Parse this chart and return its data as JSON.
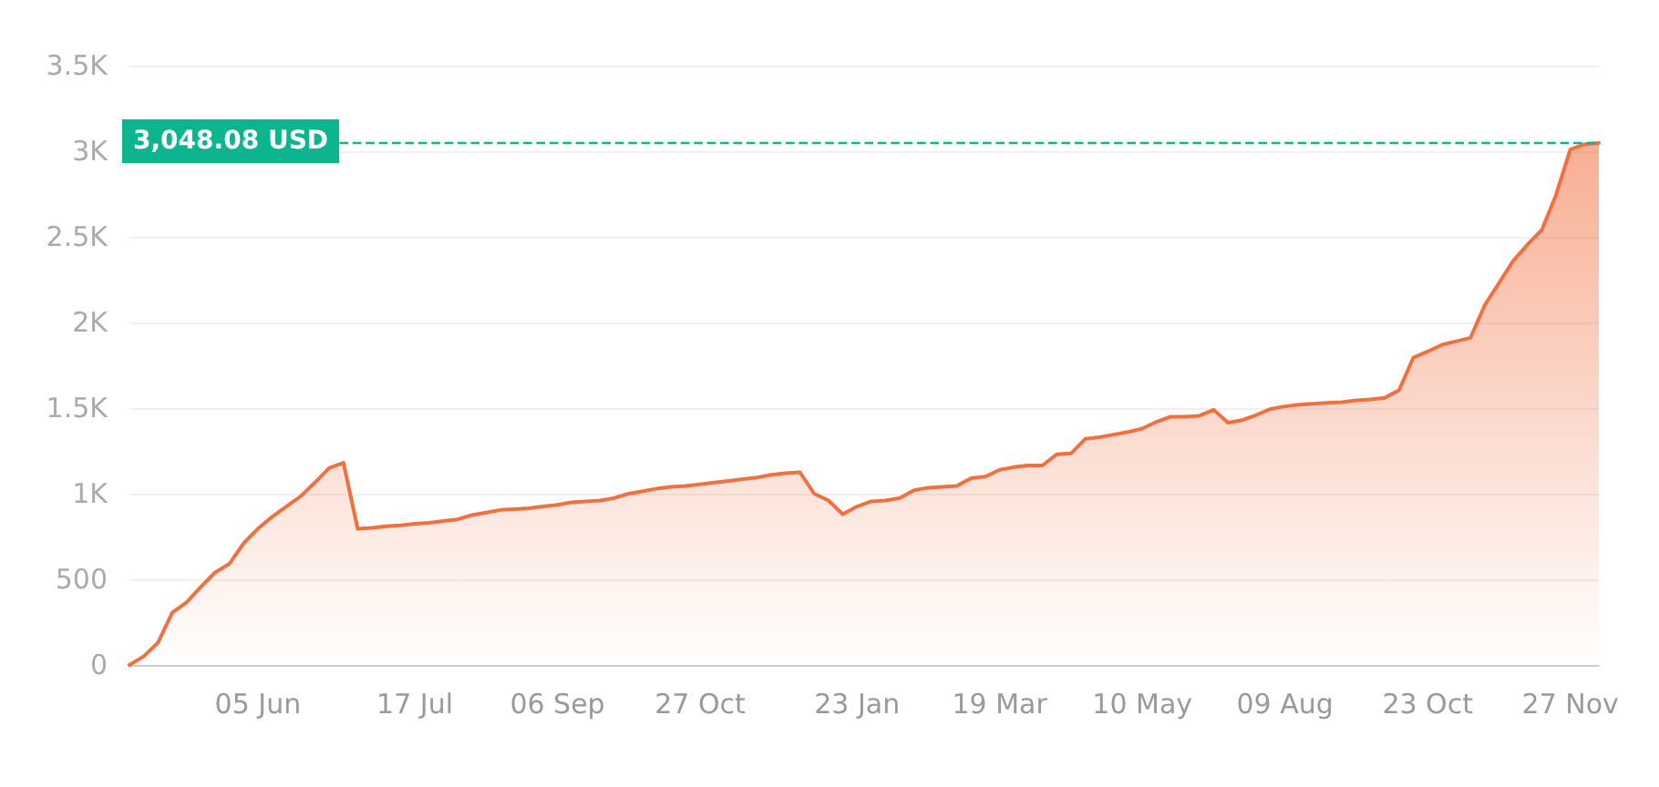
{
  "chart_data": {
    "type": "area",
    "categories": [
      null,
      null,
      null,
      null,
      null,
      null,
      null,
      null,
      null,
      "05 Jun",
      null,
      null,
      null,
      null,
      null,
      null,
      null,
      null,
      null,
      null,
      "17 Jul",
      null,
      null,
      null,
      null,
      null,
      null,
      null,
      null,
      null,
      "06 Sep",
      null,
      null,
      null,
      null,
      null,
      null,
      null,
      null,
      null,
      "27 Oct",
      null,
      null,
      null,
      null,
      null,
      null,
      null,
      null,
      null,
      null,
      "23 Jan",
      null,
      null,
      null,
      null,
      null,
      null,
      null,
      null,
      null,
      "19 Mar",
      null,
      null,
      null,
      null,
      null,
      null,
      null,
      null,
      null,
      "10 May",
      null,
      null,
      null,
      null,
      null,
      null,
      null,
      null,
      null,
      "09 Aug",
      null,
      null,
      null,
      null,
      null,
      null,
      null,
      null,
      null,
      "23 Oct",
      null,
      null,
      null,
      null,
      null,
      null,
      null,
      null,
      null,
      "27 Nov",
      null,
      null
    ],
    "series": [
      {
        "color": "#f2703f",
        "values": [
          0,
          50,
          130,
          305,
          365,
          455,
          540,
          590,
          710,
          795,
          865,
          925,
          985,
          1065,
          1150,
          1180,
          795,
          800,
          810,
          815,
          825,
          830,
          840,
          850,
          875,
          890,
          905,
          910,
          915,
          925,
          935,
          950,
          955,
          960,
          975,
          1000,
          1015,
          1030,
          1040,
          1045,
          1055,
          1065,
          1075,
          1085,
          1095,
          1110,
          1120,
          1125,
          1000,
          960,
          880,
          925,
          955,
          960,
          975,
          1020,
          1035,
          1040,
          1045,
          1090,
          1100,
          1140,
          1155,
          1165,
          1165,
          1230,
          1235,
          1320,
          1330,
          1345,
          1360,
          1380,
          1420,
          1450,
          1450,
          1455,
          1490,
          1415,
          1430,
          1460,
          1495,
          1510,
          1520,
          1525,
          1530,
          1535,
          1545,
          1550,
          1560,
          1605,
          1795,
          1830,
          1870,
          1890,
          1910,
          2100,
          2230,
          2360,
          2455,
          2540,
          2745,
          3010,
          3040,
          3048
        ]
      }
    ],
    "ylim": [
      0,
      3500
    ],
    "yticks": [
      0,
      500,
      {
        "value": 1000,
        "label": "1K"
      },
      {
        "value": 1500,
        "label": "1.5K"
      },
      {
        "value": 2000,
        "label": "2K"
      },
      {
        "value": 2500,
        "label": "2.5K"
      },
      {
        "value": 3000,
        "label": "3K"
      },
      {
        "value": 3500,
        "label": "3.5K"
      }
    ],
    "grid": "y",
    "ref_lines": [
      {
        "axis": "y",
        "value": 3048.08,
        "label": "3,048.08 USD",
        "color": "#0db58e",
        "line_style": "dashed"
      }
    ]
  }
}
